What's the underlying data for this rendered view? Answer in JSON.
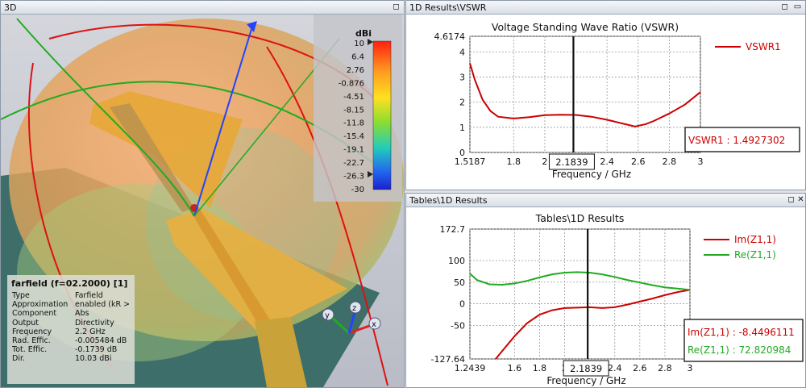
{
  "panels": {
    "view3d": {
      "title": "3D"
    },
    "vswr": {
      "title": "1D Results\\VSWR"
    },
    "tables": {
      "title": "Tables\\1D Results"
    }
  },
  "colorbar": {
    "unit": "dBi",
    "ticks": [
      "10",
      "6.4",
      "2.76",
      "-0.876",
      "-4.51",
      "-8.15",
      "-11.8",
      "-15.4",
      "-19.1",
      "-22.7",
      "-26.3",
      "-30"
    ]
  },
  "farfield_info": {
    "title": "farfield (f=02.2000) [1]",
    "rows": [
      {
        "key": "Type",
        "value": "Farfield"
      },
      {
        "key": "Approximation",
        "value": "enabled (kR >"
      },
      {
        "key": "Component",
        "value": "Abs"
      },
      {
        "key": "Output",
        "value": "Directivity"
      },
      {
        "key": "Frequency",
        "value": "2.2 GHz"
      },
      {
        "key": "Rad. Effic.",
        "value": "-0.005484 dB"
      },
      {
        "key": "Tot. Effic.",
        "value": "-0.1739 dB"
      },
      {
        "key": "Dir.",
        "value": "10.03 dBi"
      }
    ]
  },
  "axes_labels": {
    "x": "x",
    "y": "y",
    "z": "z"
  },
  "chart_data": [
    {
      "type": "line",
      "title": "Voltage Standing Wave Ratio (VSWR)",
      "xlabel": "Frequency / GHz",
      "ylabel": "",
      "xlim": [
        1.5187,
        3
      ],
      "ylim": [
        0,
        4.6174
      ],
      "x_ticks": [
        "1.5187",
        "1.8",
        "2",
        "2.4",
        "2.6",
        "2.8",
        "3"
      ],
      "y_ticks": [
        "4.6174",
        "4",
        "3",
        "2",
        "1",
        "0"
      ],
      "marker_x": 2.1839,
      "marker_label": "2.1839",
      "series": [
        {
          "name": "VSWR1",
          "color": "#cc0000",
          "x": [
            1.5187,
            1.55,
            1.6,
            1.65,
            1.7,
            1.8,
            1.9,
            2.0,
            2.1,
            2.2,
            2.3,
            2.4,
            2.5,
            2.58,
            2.65,
            2.7,
            2.8,
            2.9,
            3.0
          ],
          "y": [
            3.55,
            2.9,
            2.1,
            1.65,
            1.42,
            1.35,
            1.4,
            1.48,
            1.5,
            1.49,
            1.42,
            1.3,
            1.15,
            1.03,
            1.13,
            1.25,
            1.55,
            1.9,
            2.4
          ]
        }
      ],
      "readouts": [
        {
          "text": "VSWR1 : 1.4927302",
          "color": "#cc0000"
        }
      ],
      "legend": "top-right",
      "grid": true
    },
    {
      "type": "line",
      "title": "Tables\\1D Results",
      "xlabel": "Frequency / GHz",
      "ylabel": "",
      "xlim": [
        1.2439,
        3
      ],
      "ylim": [
        -127.64,
        172.7
      ],
      "x_ticks": [
        "1.2439",
        "1.6",
        "1.8",
        "2",
        "2.4",
        "2.6",
        "2.8",
        "3"
      ],
      "y_ticks": [
        "172.7",
        "100",
        "50",
        "0",
        "-50",
        "-127.64"
      ],
      "marker_x": 2.1839,
      "marker_label": "2.1839",
      "series": [
        {
          "name": "Im(Z1,1)",
          "color": "#cc0000",
          "x": [
            1.45,
            1.5,
            1.6,
            1.7,
            1.8,
            1.9,
            2.0,
            2.1,
            2.2,
            2.3,
            2.4,
            2.5,
            2.6,
            2.7,
            2.8,
            2.9,
            3.0
          ],
          "y": [
            -127.64,
            -110,
            -75,
            -45,
            -25,
            -15,
            -10,
            -9,
            -8,
            -10,
            -8,
            -2,
            5,
            12,
            20,
            27,
            32
          ]
        },
        {
          "name": "Re(Z1,1)",
          "color": "#22aa22",
          "x": [
            1.2439,
            1.3,
            1.4,
            1.5,
            1.6,
            1.7,
            1.8,
            1.9,
            2.0,
            2.1,
            2.2,
            2.3,
            2.4,
            2.5,
            2.6,
            2.7,
            2.8,
            2.9,
            3.0
          ],
          "y": [
            70,
            55,
            45,
            44,
            47,
            53,
            61,
            68,
            72,
            73,
            72,
            68,
            62,
            55,
            49,
            43,
            38,
            35,
            32
          ]
        }
      ],
      "readouts": [
        {
          "text": "Im(Z1,1) : -8.4496111",
          "color": "#cc0000"
        },
        {
          "text": "Re(Z1,1) : 72.820984",
          "color": "#22aa22"
        }
      ],
      "legend": "top-right",
      "grid": true
    }
  ]
}
